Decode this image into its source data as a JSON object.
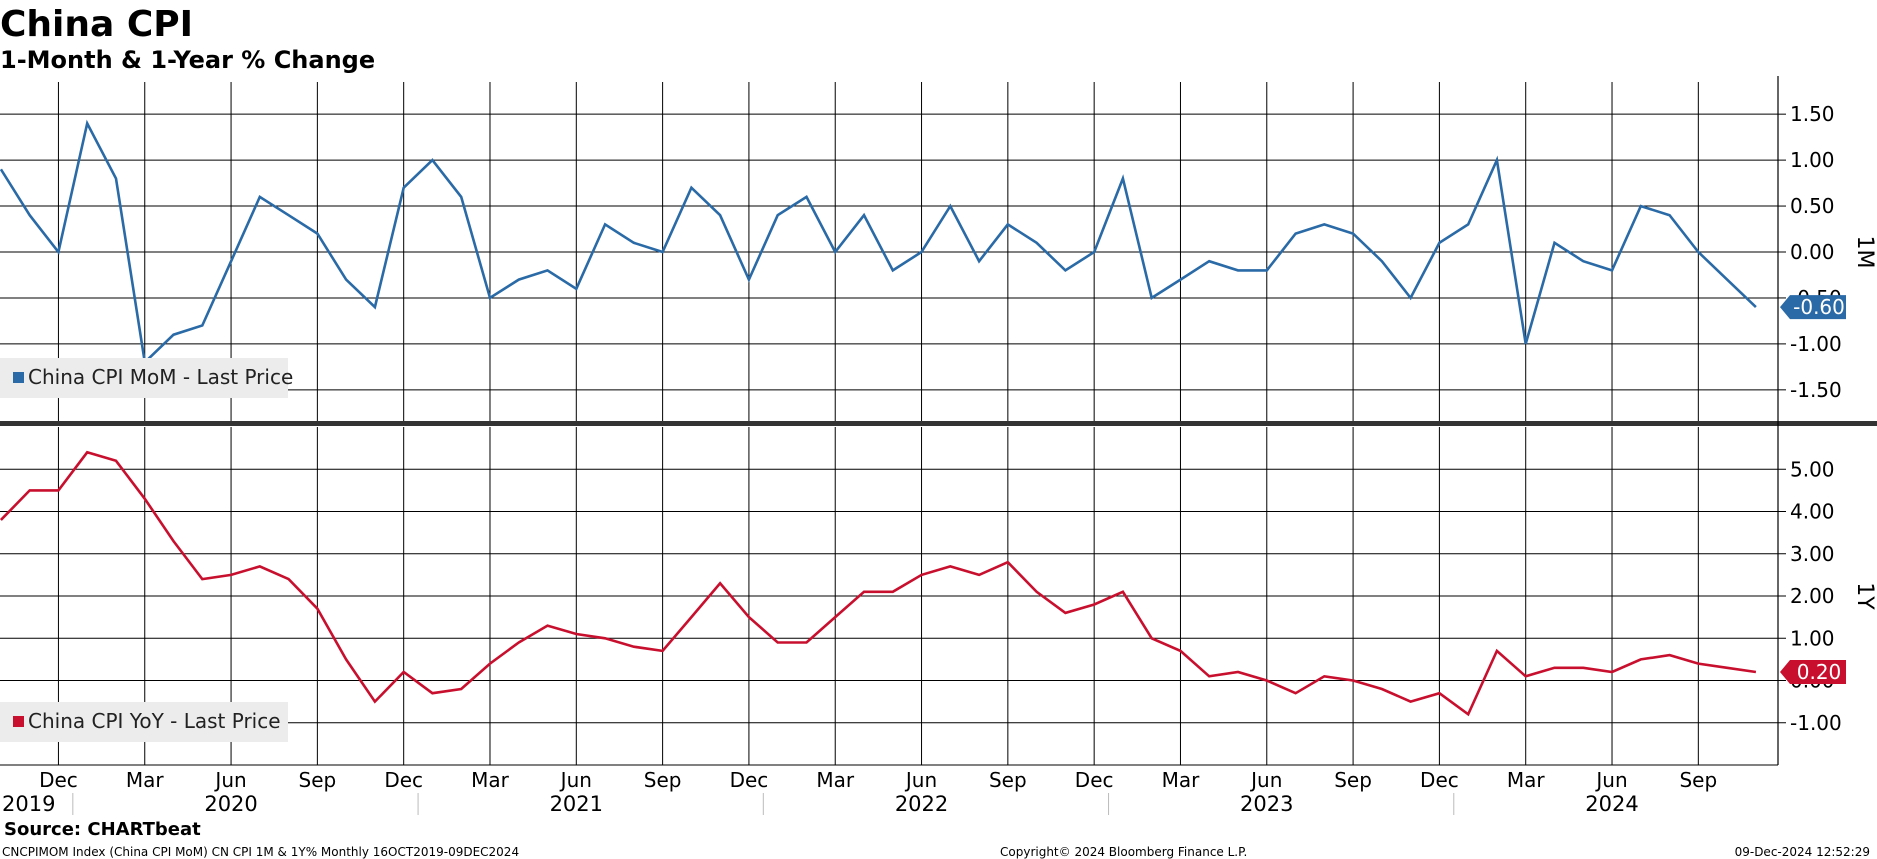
{
  "header": {
    "title": "China CPI",
    "subtitle": "1-Month & 1-Year % Change"
  },
  "colors": {
    "mom": "#2a6aa6",
    "yoy": "#c8102e",
    "grid": "#000000",
    "legend_bg": "#ececec"
  },
  "chart_data": [
    {
      "type": "line",
      "panel": "top",
      "axis_label": "1M",
      "ylim": [
        -1.85,
        1.85
      ],
      "yticks": [
        "1.50",
        "1.00",
        "0.50",
        "0.00",
        "-0.50",
        "-1.00",
        "-1.50"
      ],
      "series": [
        {
          "name": "China CPI MoM - Last Price",
          "color": "#2a6aa6",
          "x": [
            "2019-10",
            "2019-11",
            "2019-12",
            "2020-01",
            "2020-02",
            "2020-03",
            "2020-04",
            "2020-05",
            "2020-06",
            "2020-07",
            "2020-08",
            "2020-09",
            "2020-10",
            "2020-11",
            "2020-12",
            "2021-01",
            "2021-02",
            "2021-03",
            "2021-04",
            "2021-05",
            "2021-06",
            "2021-07",
            "2021-08",
            "2021-09",
            "2021-10",
            "2021-11",
            "2021-12",
            "2022-01",
            "2022-02",
            "2022-03",
            "2022-04",
            "2022-05",
            "2022-06",
            "2022-07",
            "2022-08",
            "2022-09",
            "2022-10",
            "2022-11",
            "2022-12",
            "2023-01",
            "2023-02",
            "2023-03",
            "2023-04",
            "2023-05",
            "2023-06",
            "2023-07",
            "2023-08",
            "2023-09",
            "2023-10",
            "2023-11",
            "2023-12",
            "2024-01",
            "2024-02",
            "2024-03",
            "2024-04",
            "2024-05",
            "2024-06",
            "2024-07",
            "2024-08",
            "2024-09",
            "2024-10",
            "2024-11"
          ],
          "values": [
            0.9,
            0.4,
            0.0,
            1.4,
            0.8,
            -1.2,
            -0.9,
            -0.8,
            -0.1,
            0.6,
            0.4,
            0.2,
            -0.3,
            -0.6,
            0.7,
            1.0,
            0.6,
            -0.5,
            -0.3,
            -0.2,
            -0.4,
            0.3,
            0.1,
            0.0,
            0.7,
            0.4,
            -0.3,
            0.4,
            0.6,
            0.0,
            0.4,
            -0.2,
            0.0,
            0.5,
            -0.1,
            0.3,
            0.1,
            -0.2,
            0.0,
            0.8,
            -0.5,
            -0.3,
            -0.1,
            -0.2,
            -0.2,
            0.2,
            0.3,
            0.2,
            -0.1,
            -0.5,
            0.1,
            0.3,
            1.0,
            -1.0,
            0.1,
            -0.1,
            -0.2,
            0.5,
            0.4,
            0.0,
            -0.3,
            -0.6
          ]
        }
      ],
      "last_value_label": "-0.60"
    },
    {
      "type": "line",
      "panel": "bottom",
      "axis_label": "1Y",
      "ylim": [
        -2.0,
        6.0
      ],
      "yticks": [
        "5.00",
        "4.00",
        "3.00",
        "2.00",
        "1.00",
        "0.00",
        "-1.00"
      ],
      "series": [
        {
          "name": "China CPI YoY - Last Price",
          "color": "#c8102e",
          "x": [
            "2019-10",
            "2019-11",
            "2019-12",
            "2020-01",
            "2020-02",
            "2020-03",
            "2020-04",
            "2020-05",
            "2020-06",
            "2020-07",
            "2020-08",
            "2020-09",
            "2020-10",
            "2020-11",
            "2020-12",
            "2021-01",
            "2021-02",
            "2021-03",
            "2021-04",
            "2021-05",
            "2021-06",
            "2021-07",
            "2021-08",
            "2021-09",
            "2021-10",
            "2021-11",
            "2021-12",
            "2022-01",
            "2022-02",
            "2022-03",
            "2022-04",
            "2022-05",
            "2022-06",
            "2022-07",
            "2022-08",
            "2022-09",
            "2022-10",
            "2022-11",
            "2022-12",
            "2023-01",
            "2023-02",
            "2023-03",
            "2023-04",
            "2023-05",
            "2023-06",
            "2023-07",
            "2023-08",
            "2023-09",
            "2023-10",
            "2023-11",
            "2023-12",
            "2024-01",
            "2024-02",
            "2024-03",
            "2024-04",
            "2024-05",
            "2024-06",
            "2024-07",
            "2024-08",
            "2024-09",
            "2024-10",
            "2024-11"
          ],
          "values": [
            3.8,
            4.5,
            4.5,
            5.4,
            5.2,
            4.3,
            3.3,
            2.4,
            2.5,
            2.7,
            2.4,
            1.7,
            0.5,
            -0.5,
            0.2,
            -0.3,
            -0.2,
            0.4,
            0.9,
            1.3,
            1.1,
            1.0,
            0.8,
            0.7,
            1.5,
            2.3,
            1.5,
            0.9,
            0.9,
            1.5,
            2.1,
            2.1,
            2.5,
            2.7,
            2.5,
            2.8,
            2.1,
            1.6,
            1.8,
            2.1,
            1.0,
            0.7,
            0.1,
            0.2,
            0.0,
            -0.3,
            0.1,
            0.0,
            -0.2,
            -0.5,
            -0.3,
            -0.8,
            0.7,
            0.1,
            0.3,
            0.3,
            0.2,
            0.5,
            0.6,
            0.4,
            0.3,
            0.2
          ]
        }
      ],
      "last_value_label": "0.20"
    }
  ],
  "x_axis": {
    "month_labels": [
      {
        "label": "Dec",
        "at": "2019-12"
      },
      {
        "label": "Mar",
        "at": "2020-03"
      },
      {
        "label": "Jun",
        "at": "2020-06"
      },
      {
        "label": "Sep",
        "at": "2020-09"
      },
      {
        "label": "Dec",
        "at": "2020-12"
      },
      {
        "label": "Mar",
        "at": "2021-03"
      },
      {
        "label": "Jun",
        "at": "2021-06"
      },
      {
        "label": "Sep",
        "at": "2021-09"
      },
      {
        "label": "Dec",
        "at": "2021-12"
      },
      {
        "label": "Mar",
        "at": "2022-03"
      },
      {
        "label": "Jun",
        "at": "2022-06"
      },
      {
        "label": "Sep",
        "at": "2022-09"
      },
      {
        "label": "Dec",
        "at": "2022-12"
      },
      {
        "label": "Mar",
        "at": "2023-03"
      },
      {
        "label": "Jun",
        "at": "2023-06"
      },
      {
        "label": "Sep",
        "at": "2023-09"
      },
      {
        "label": "Dec",
        "at": "2023-12"
      },
      {
        "label": "Mar",
        "at": "2024-03"
      },
      {
        "label": "Jun",
        "at": "2024-06"
      },
      {
        "label": "Sep",
        "at": "2024-09"
      }
    ],
    "year_labels": [
      {
        "label": "2019",
        "at": "2019-10"
      },
      {
        "label": "2020",
        "at": "2020-06"
      },
      {
        "label": "2021",
        "at": "2021-06"
      },
      {
        "label": "2022",
        "at": "2022-06"
      },
      {
        "label": "2023",
        "at": "2023-06"
      },
      {
        "label": "2024",
        "at": "2024-06"
      }
    ]
  },
  "footer": {
    "source": "Source: CHARTbeat",
    "ticker_line": "CNCPIMOM Index (China CPI MoM) CN CPI 1M & 1Y%  Monthly 16OCT2019-09DEC2024",
    "copyright": "Copyright© 2024 Bloomberg Finance L.P.",
    "timestamp": "09-Dec-2024 12:52:29"
  }
}
